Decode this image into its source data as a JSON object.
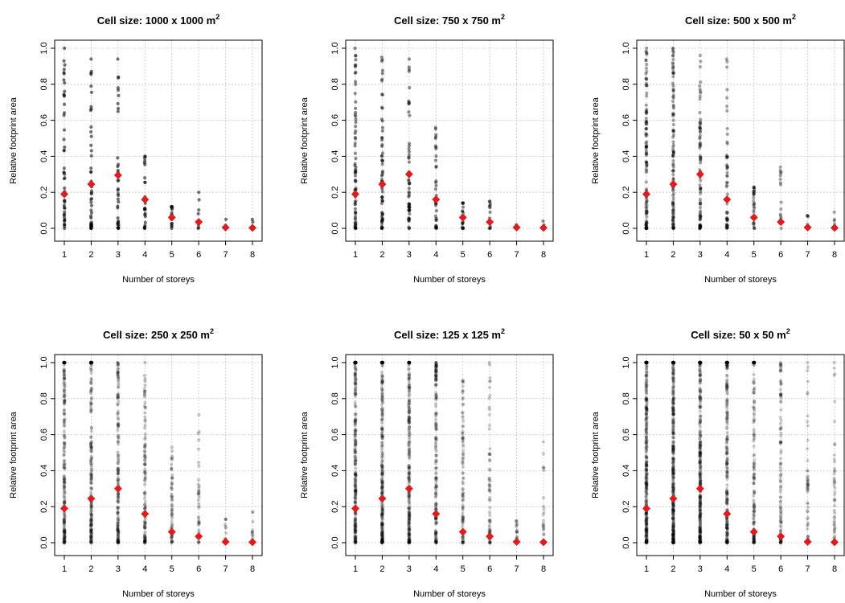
{
  "colors": {
    "points": "#000000",
    "mean_marker": "#e31a1c",
    "grid": "#c8c8c8"
  },
  "chart_data": [
    {
      "type": "scatter",
      "title": "Cell size: 1000 x 1000 m",
      "title_sup": "2",
      "xlabel": "Number of storeys",
      "ylabel": "Relative footprint area",
      "xlim": [
        1,
        8
      ],
      "ylim": [
        0,
        1
      ],
      "xticks": [
        1,
        2,
        3,
        4,
        5,
        6,
        7,
        8
      ],
      "yticks": [
        0,
        0.2,
        0.4,
        0.6,
        0.8,
        1
      ],
      "ytick_labels": [
        "0.0",
        "0.2",
        "0.4",
        "0.6",
        "0.8",
        "1.0"
      ],
      "grid": true,
      "point_alpha": 0.55,
      "columns": [
        {
          "x": 1,
          "max": 1.0,
          "dense_to": 0.55,
          "n": 45
        },
        {
          "x": 2,
          "max": 0.94,
          "dense_to": 0.55,
          "n": 45
        },
        {
          "x": 3,
          "max": 0.94,
          "dense_to": 0.45,
          "n": 35
        },
        {
          "x": 4,
          "max": 0.4,
          "dense_to": 0.35,
          "n": 25
        },
        {
          "x": 5,
          "max": 0.12,
          "dense_to": 0.12,
          "n": 14
        },
        {
          "x": 6,
          "max": 0.2,
          "dense_to": 0.1,
          "n": 8
        },
        {
          "x": 7,
          "max": 0.05,
          "dense_to": 0.05,
          "n": 3
        },
        {
          "x": 8,
          "max": 0.05,
          "dense_to": 0.05,
          "n": 3
        }
      ],
      "means": [
        {
          "x": 1,
          "y": 0.19
        },
        {
          "x": 2,
          "y": 0.245
        },
        {
          "x": 3,
          "y": 0.295
        },
        {
          "x": 4,
          "y": 0.16
        },
        {
          "x": 5,
          "y": 0.06
        },
        {
          "x": 6,
          "y": 0.035
        },
        {
          "x": 7,
          "y": 0.005
        },
        {
          "x": 8,
          "y": 0.003
        }
      ]
    },
    {
      "type": "scatter",
      "title": "Cell size: 750 x 750 m",
      "title_sup": "2",
      "xlabel": "Number of storeys",
      "ylabel": "Relative footprint area",
      "xlim": [
        1,
        8
      ],
      "ylim": [
        0,
        1
      ],
      "xticks": [
        1,
        2,
        3,
        4,
        5,
        6,
        7,
        8
      ],
      "yticks": [
        0,
        0.2,
        0.4,
        0.6,
        0.8,
        1
      ],
      "ytick_labels": [
        "0.0",
        "0.2",
        "0.4",
        "0.6",
        "0.8",
        "1.0"
      ],
      "grid": true,
      "point_alpha": 0.45,
      "columns": [
        {
          "x": 1,
          "max": 1.0,
          "dense_to": 0.6,
          "n": 70
        },
        {
          "x": 2,
          "max": 0.95,
          "dense_to": 0.6,
          "n": 70
        },
        {
          "x": 3,
          "max": 0.94,
          "dense_to": 0.5,
          "n": 55
        },
        {
          "x": 4,
          "max": 0.56,
          "dense_to": 0.4,
          "n": 35
        },
        {
          "x": 5,
          "max": 0.14,
          "dense_to": 0.14,
          "n": 18
        },
        {
          "x": 6,
          "max": 0.15,
          "dense_to": 0.1,
          "n": 12
        },
        {
          "x": 7,
          "max": 0.02,
          "dense_to": 0.02,
          "n": 4
        },
        {
          "x": 8,
          "max": 0.04,
          "dense_to": 0.04,
          "n": 4
        }
      ],
      "means": [
        {
          "x": 1,
          "y": 0.19
        },
        {
          "x": 2,
          "y": 0.245
        },
        {
          "x": 3,
          "y": 0.3
        },
        {
          "x": 4,
          "y": 0.16
        },
        {
          "x": 5,
          "y": 0.06
        },
        {
          "x": 6,
          "y": 0.035
        },
        {
          "x": 7,
          "y": 0.005
        },
        {
          "x": 8,
          "y": 0.003
        }
      ]
    },
    {
      "type": "scatter",
      "title": "Cell size: 500 x 500 m",
      "title_sup": "2",
      "xlabel": "Number of storeys",
      "ylabel": "Relative footprint area",
      "xlim": [
        1,
        8
      ],
      "ylim": [
        0,
        1
      ],
      "xticks": [
        1,
        2,
        3,
        4,
        5,
        6,
        7,
        8
      ],
      "yticks": [
        0,
        0.2,
        0.4,
        0.6,
        0.8,
        1
      ],
      "ytick_labels": [
        "0.0",
        "0.2",
        "0.4",
        "0.6",
        "0.8",
        "1.0"
      ],
      "grid": true,
      "point_alpha": 0.35,
      "columns": [
        {
          "x": 1,
          "max": 1.0,
          "dense_to": 0.7,
          "n": 110
        },
        {
          "x": 2,
          "max": 1.0,
          "dense_to": 0.7,
          "n": 110
        },
        {
          "x": 3,
          "max": 0.96,
          "dense_to": 0.6,
          "n": 85
        },
        {
          "x": 4,
          "max": 0.94,
          "dense_to": 0.42,
          "n": 55
        },
        {
          "x": 5,
          "max": 0.23,
          "dense_to": 0.2,
          "n": 30
        },
        {
          "x": 6,
          "max": 0.34,
          "dense_to": 0.15,
          "n": 20
        },
        {
          "x": 7,
          "max": 0.07,
          "dense_to": 0.07,
          "n": 6
        },
        {
          "x": 8,
          "max": 0.09,
          "dense_to": 0.09,
          "n": 6
        }
      ],
      "means": [
        {
          "x": 1,
          "y": 0.19
        },
        {
          "x": 2,
          "y": 0.245
        },
        {
          "x": 3,
          "y": 0.3
        },
        {
          "x": 4,
          "y": 0.16
        },
        {
          "x": 5,
          "y": 0.06
        },
        {
          "x": 6,
          "y": 0.035
        },
        {
          "x": 7,
          "y": 0.005
        },
        {
          "x": 8,
          "y": 0.003
        }
      ]
    },
    {
      "type": "scatter",
      "title": "Cell size: 250 x 250 m",
      "title_sup": "2",
      "xlabel": "Number of storeys",
      "ylabel": "Relative footprint area",
      "xlim": [
        1,
        8
      ],
      "ylim": [
        0,
        1
      ],
      "xticks": [
        1,
        2,
        3,
        4,
        5,
        6,
        7,
        8
      ],
      "yticks": [
        0,
        0.2,
        0.4,
        0.6,
        0.8,
        1
      ],
      "ytick_labels": [
        "0.0",
        "0.2",
        "0.4",
        "0.6",
        "0.8",
        "1.0"
      ],
      "grid": true,
      "point_alpha": 0.22,
      "columns": [
        {
          "x": 1,
          "max": 1.0,
          "dense_to": 1.0,
          "n": 200
        },
        {
          "x": 2,
          "max": 1.0,
          "dense_to": 1.0,
          "n": 200
        },
        {
          "x": 3,
          "max": 1.0,
          "dense_to": 0.8,
          "n": 160
        },
        {
          "x": 4,
          "max": 1.0,
          "dense_to": 0.6,
          "n": 110
        },
        {
          "x": 5,
          "max": 0.53,
          "dense_to": 0.35,
          "n": 60
        },
        {
          "x": 6,
          "max": 0.71,
          "dense_to": 0.3,
          "n": 40
        },
        {
          "x": 7,
          "max": 0.13,
          "dense_to": 0.13,
          "n": 14
        },
        {
          "x": 8,
          "max": 0.17,
          "dense_to": 0.17,
          "n": 14
        }
      ],
      "means": [
        {
          "x": 1,
          "y": 0.19
        },
        {
          "x": 2,
          "y": 0.245
        },
        {
          "x": 3,
          "y": 0.3
        },
        {
          "x": 4,
          "y": 0.16
        },
        {
          "x": 5,
          "y": 0.06
        },
        {
          "x": 6,
          "y": 0.035
        },
        {
          "x": 7,
          "y": 0.005
        },
        {
          "x": 8,
          "y": 0.003
        }
      ]
    },
    {
      "type": "scatter",
      "title": "Cell size: 125 x 125 m",
      "title_sup": "2",
      "xlabel": "Number of storeys",
      "ylabel": "Relative footprint area",
      "xlim": [
        1,
        8
      ],
      "ylim": [
        0,
        1
      ],
      "xticks": [
        1,
        2,
        3,
        4,
        5,
        6,
        7,
        8
      ],
      "yticks": [
        0,
        0.2,
        0.4,
        0.6,
        0.8,
        1
      ],
      "ytick_labels": [
        "0.0",
        "0.2",
        "0.4",
        "0.6",
        "0.8",
        "1.0"
      ],
      "grid": true,
      "point_alpha": 0.2,
      "columns": [
        {
          "x": 1,
          "max": 1.0,
          "dense_to": 1.0,
          "n": 300
        },
        {
          "x": 2,
          "max": 1.0,
          "dense_to": 1.0,
          "n": 300
        },
        {
          "x": 3,
          "max": 1.0,
          "dense_to": 1.0,
          "n": 260
        },
        {
          "x": 4,
          "max": 1.0,
          "dense_to": 0.9,
          "n": 180
        },
        {
          "x": 5,
          "max": 0.9,
          "dense_to": 0.6,
          "n": 100
        },
        {
          "x": 6,
          "max": 1.0,
          "dense_to": 0.5,
          "n": 70
        },
        {
          "x": 7,
          "max": 0.12,
          "dense_to": 0.12,
          "n": 20
        },
        {
          "x": 8,
          "max": 0.56,
          "dense_to": 0.3,
          "n": 25
        }
      ],
      "means": [
        {
          "x": 1,
          "y": 0.19
        },
        {
          "x": 2,
          "y": 0.245
        },
        {
          "x": 3,
          "y": 0.3
        },
        {
          "x": 4,
          "y": 0.16
        },
        {
          "x": 5,
          "y": 0.06
        },
        {
          "x": 6,
          "y": 0.035
        },
        {
          "x": 7,
          "y": 0.005
        },
        {
          "x": 8,
          "y": 0.003
        }
      ]
    },
    {
      "type": "scatter",
      "title": "Cell size: 50 x 50 m",
      "title_sup": "2",
      "xlabel": "Number of storeys",
      "ylabel": "Relative footprint area",
      "xlim": [
        1,
        8
      ],
      "ylim": [
        0,
        1
      ],
      "xticks": [
        1,
        2,
        3,
        4,
        5,
        6,
        7,
        8
      ],
      "yticks": [
        0,
        0.2,
        0.4,
        0.6,
        0.8,
        1
      ],
      "ytick_labels": [
        "0.0",
        "0.2",
        "0.4",
        "0.6",
        "0.8",
        "1.0"
      ],
      "grid": true,
      "point_alpha": 0.2,
      "columns": [
        {
          "x": 1,
          "max": 1.0,
          "dense_to": 1.0,
          "n": 380
        },
        {
          "x": 2,
          "max": 1.0,
          "dense_to": 1.0,
          "n": 420
        },
        {
          "x": 3,
          "max": 1.0,
          "dense_to": 1.0,
          "n": 380
        },
        {
          "x": 4,
          "max": 1.0,
          "dense_to": 1.0,
          "n": 260
        },
        {
          "x": 5,
          "max": 1.0,
          "dense_to": 1.0,
          "n": 170
        },
        {
          "x": 6,
          "max": 1.0,
          "dense_to": 0.8,
          "n": 110
        },
        {
          "x": 7,
          "max": 1.0,
          "dense_to": 0.4,
          "n": 50
        },
        {
          "x": 8,
          "max": 1.0,
          "dense_to": 0.5,
          "n": 50
        }
      ],
      "means": [
        {
          "x": 1,
          "y": 0.19
        },
        {
          "x": 2,
          "y": 0.245
        },
        {
          "x": 3,
          "y": 0.3
        },
        {
          "x": 4,
          "y": 0.16
        },
        {
          "x": 5,
          "y": 0.06
        },
        {
          "x": 6,
          "y": 0.035
        },
        {
          "x": 7,
          "y": 0.005
        },
        {
          "x": 8,
          "y": 0.003
        }
      ]
    }
  ]
}
